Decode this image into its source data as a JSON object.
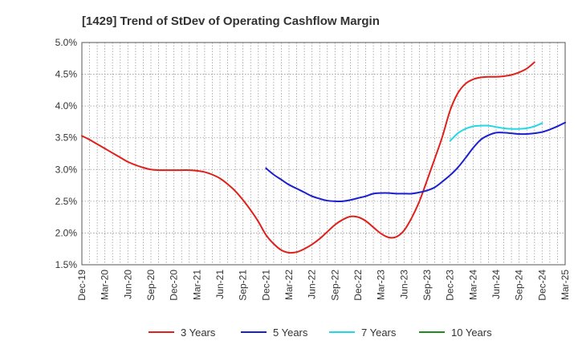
{
  "chart_data": {
    "type": "line",
    "title": "[1429]  Trend of StDev of Operating Cashflow Margin",
    "xlabel": "",
    "ylabel": "",
    "ylim": [
      1.5,
      5.0
    ],
    "y_ticks": [
      "1.5%",
      "2.0%",
      "2.5%",
      "3.0%",
      "3.5%",
      "4.0%",
      "4.5%",
      "5.0%"
    ],
    "x_ticks": [
      "Dec-19",
      "Mar-20",
      "Jun-20",
      "Sep-20",
      "Dec-20",
      "Mar-21",
      "Jun-21",
      "Sep-21",
      "Dec-21",
      "Mar-22",
      "Jun-22",
      "Sep-22",
      "Dec-22",
      "Mar-23",
      "Jun-23",
      "Sep-23",
      "Dec-23",
      "Mar-24",
      "Jun-24",
      "Sep-24",
      "Dec-24",
      "Mar-25"
    ],
    "grid": true,
    "legend_position": "bottom",
    "x_start": 0,
    "series": [
      {
        "name": "3 Years",
        "color": "#e0201b",
        "start_index": 0,
        "values": [
          3.53,
          3.47,
          3.4,
          3.33,
          3.26,
          3.19,
          3.12,
          3.07,
          3.03,
          3.0,
          2.99,
          2.99,
          2.99,
          2.99,
          2.99,
          2.98,
          2.96,
          2.92,
          2.86,
          2.77,
          2.66,
          2.52,
          2.36,
          2.18,
          1.97,
          1.83,
          1.73,
          1.69,
          1.7,
          1.75,
          1.82,
          1.91,
          2.02,
          2.13,
          2.21,
          2.26,
          2.25,
          2.19,
          2.09,
          1.99,
          1.93,
          1.94,
          2.04,
          2.24,
          2.5,
          2.83,
          3.17,
          3.52,
          3.93,
          4.2,
          4.35,
          4.42,
          4.45,
          4.46,
          4.46,
          4.47,
          4.49,
          4.53,
          4.59,
          4.69
        ]
      },
      {
        "name": "5 Years",
        "color": "#1a1fcf",
        "start_index": 24,
        "values": [
          3.02,
          2.92,
          2.84,
          2.76,
          2.7,
          2.64,
          2.58,
          2.54,
          2.51,
          2.5,
          2.5,
          2.52,
          2.55,
          2.58,
          2.62,
          2.63,
          2.63,
          2.62,
          2.62,
          2.62,
          2.64,
          2.67,
          2.72,
          2.81,
          2.91,
          3.03,
          3.18,
          3.34,
          3.47,
          3.54,
          3.58,
          3.58,
          3.57,
          3.56,
          3.56,
          3.57,
          3.59,
          3.63,
          3.68,
          3.74
        ]
      },
      {
        "name": "7 Years",
        "color": "#22d8e8",
        "start_index": 48,
        "values": [
          3.45,
          3.57,
          3.64,
          3.68,
          3.69,
          3.69,
          3.67,
          3.65,
          3.64,
          3.64,
          3.65,
          3.68,
          3.73
        ]
      },
      {
        "name": "10 Years",
        "color": "#1e8c1e",
        "start_index": 0,
        "values": []
      }
    ]
  }
}
